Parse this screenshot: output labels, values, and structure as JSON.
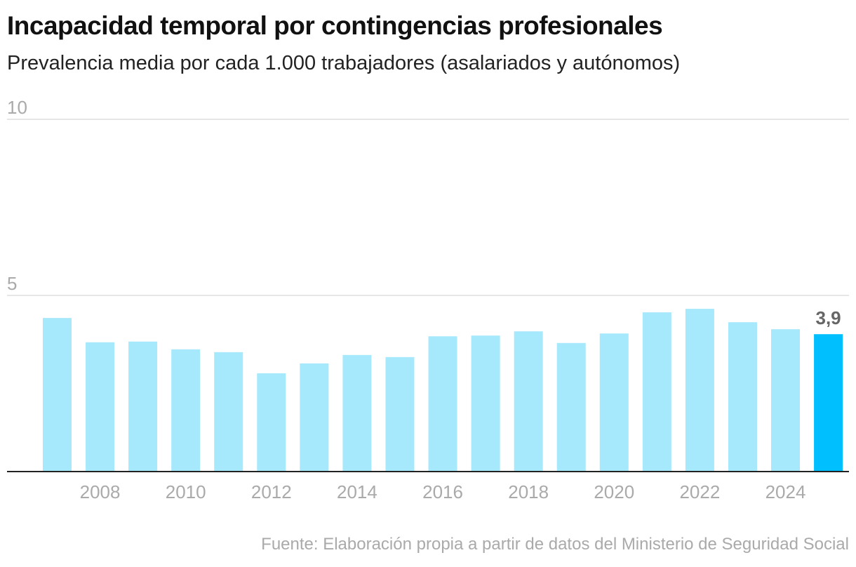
{
  "chart_data": {
    "type": "bar",
    "title": "Incapacidad temporal por contingencias profesionales",
    "subtitle": "Prevalencia media por cada 1.000 trabajadores (asalariados y autónomos)",
    "categories": [
      "2007",
      "2008",
      "2009",
      "2010",
      "2011",
      "2012",
      "2013",
      "2014",
      "2015",
      "2016",
      "2017",
      "2018",
      "2019",
      "2020",
      "2021",
      "2022",
      "2023",
      "2024",
      "2025"
    ],
    "values": [
      4.36,
      3.67,
      3.69,
      3.47,
      3.39,
      2.79,
      3.07,
      3.31,
      3.25,
      3.84,
      3.86,
      3.98,
      3.65,
      3.92,
      4.52,
      4.62,
      4.24,
      4.04,
      3.9
    ],
    "x_tick_labels": [
      "2008",
      "2010",
      "2012",
      "2014",
      "2016",
      "2018",
      "2020",
      "2022",
      "2024"
    ],
    "y_tick_labels": [
      "5",
      "10"
    ],
    "ylim": [
      0,
      10
    ],
    "grid": true,
    "annotation": {
      "category": "2025",
      "label": "3,9"
    },
    "colors": {
      "bar": "#a6e8fc",
      "highlight": "#00bfff",
      "grid": "#dddddd",
      "axis": "#222222",
      "tick": "#aaaaaa"
    },
    "source": "Fuente: Elaboración propia a partir de datos del Ministerio de Seguridad Social"
  }
}
